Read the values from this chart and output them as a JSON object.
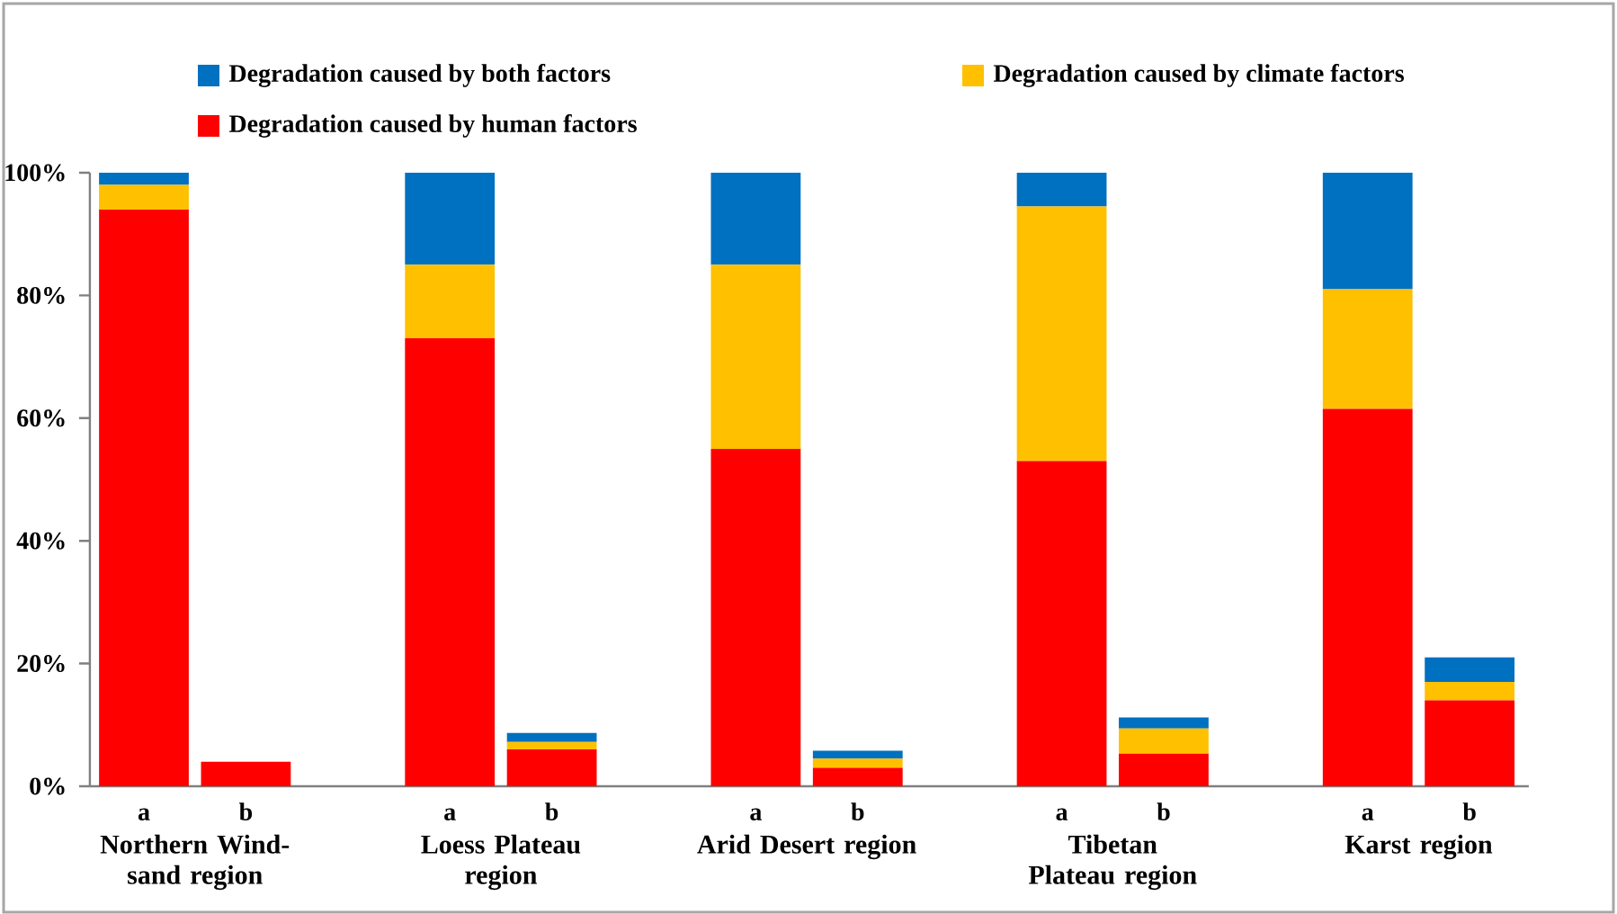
{
  "chart_data": {
    "type": "bar",
    "stacked": true,
    "legend": "top",
    "categories": [
      "a",
      "b",
      null,
      "a",
      "b",
      null,
      "a",
      "b",
      null,
      "a",
      "b",
      null,
      "a",
      "b"
    ],
    "series": [
      {
        "name": "Degradation caused by human factors",
        "color": "#ff0000",
        "values": [
          94,
          4,
          null,
          73,
          6,
          null,
          55,
          3,
          null,
          53,
          5.3,
          null,
          61.5,
          14
        ]
      },
      {
        "name": "Degradation caused by climate factors",
        "color": "#ffc000",
        "values": [
          4,
          0,
          null,
          12,
          1.2,
          null,
          30,
          1.5,
          null,
          41.5,
          4.1,
          null,
          19.5,
          3
        ]
      },
      {
        "name": "Degradation caused by both factors",
        "color": "#0070c0",
        "values": [
          2,
          0,
          null,
          15,
          1.5,
          null,
          15,
          1.3,
          null,
          5.5,
          1.8,
          null,
          19,
          4
        ]
      }
    ],
    "ylim": [
      0,
      100
    ],
    "yticks": [
      {
        "value": 0,
        "label": "0%"
      },
      {
        "value": 20,
        "label": "20%"
      },
      {
        "value": 40,
        "label": "40%"
      },
      {
        "value": 60,
        "label": "60%"
      },
      {
        "value": 80,
        "label": "80%"
      },
      {
        "value": 100,
        "label": "100%"
      }
    ],
    "annotations": [
      "Northern Wind-sand region",
      "Loess Plateau region",
      "Arid Desert region",
      "Tibetan Plateau region",
      "Karst region"
    ]
  }
}
